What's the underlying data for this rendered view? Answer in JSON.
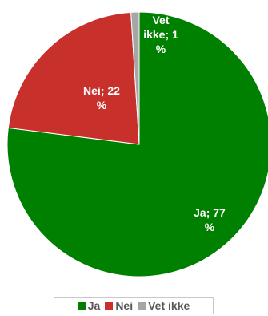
{
  "chart_data": {
    "type": "pie",
    "title": "",
    "categories": [
      "Ja",
      "Nei",
      "Vet ikke"
    ],
    "values": [
      77,
      22,
      1
    ],
    "unit": "%",
    "colors": [
      "#008000",
      "#c8302c",
      "#a6a6a6"
    ],
    "data_labels": [
      {
        "lines": [
          "Ja; 77",
          "%"
        ]
      },
      {
        "lines": [
          "Nei; 22",
          "%"
        ]
      },
      {
        "lines": [
          "Vet",
          "ikke; 1",
          "%"
        ]
      }
    ],
    "legend": {
      "placement": "bottom",
      "entries": [
        "Ja",
        "Nei",
        "Vet ikke"
      ]
    }
  }
}
